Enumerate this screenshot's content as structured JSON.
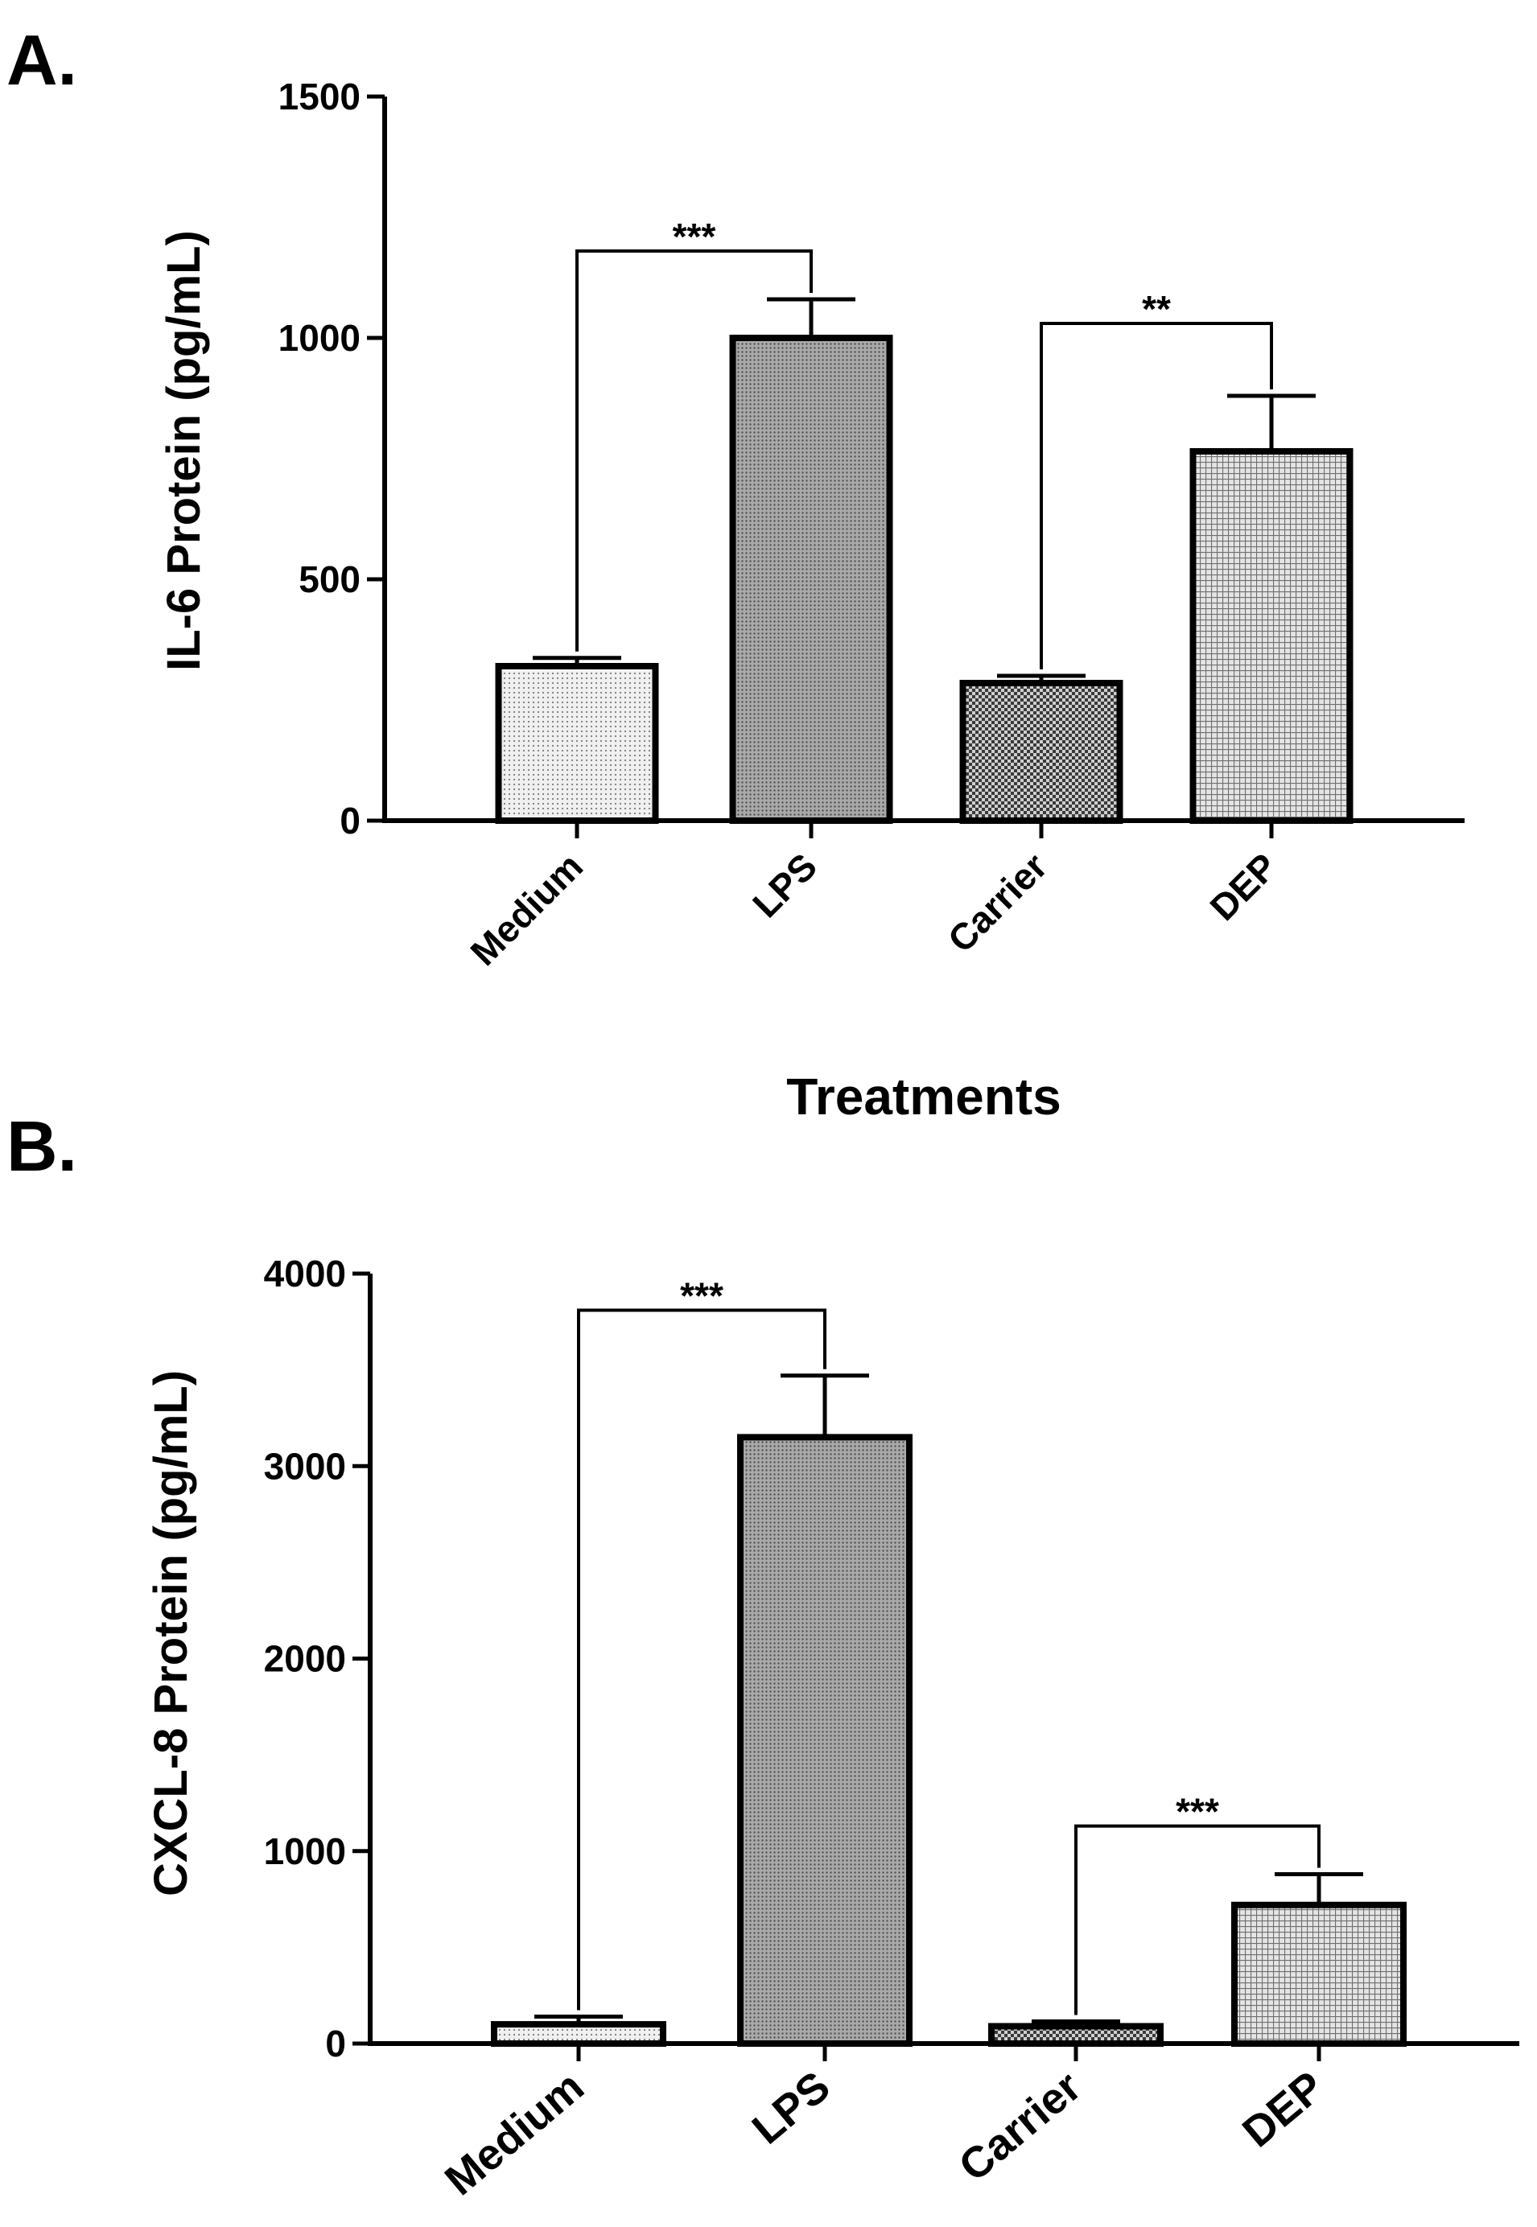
{
  "chart_data": [
    {
      "type": "bar",
      "panel_label": "A.",
      "ylabel": "IL-6 Protein (pg/mL)",
      "xlabel": "Treatments",
      "categories": [
        "Medium",
        "LPS",
        "Carrier",
        "DEP"
      ],
      "values": [
        320,
        1000,
        285,
        765
      ],
      "errors": [
        17,
        80,
        15,
        115
      ],
      "ylim": [
        0,
        1500
      ],
      "yticks": [
        0,
        500,
        1000,
        1500
      ],
      "fills": [
        "light",
        "medium",
        "dark",
        "grid"
      ],
      "significance": [
        {
          "from": 0,
          "to": 1,
          "label": "***",
          "bracket_y": 1180
        },
        {
          "from": 2,
          "to": 3,
          "label": "**",
          "bracket_y": 1030
        }
      ]
    },
    {
      "type": "bar",
      "panel_label": "B.",
      "ylabel": "CXCL-8 Protein  (pg/mL)",
      "xlabel": "",
      "categories": [
        "Medium",
        "LPS",
        "Carrier",
        "DEP"
      ],
      "values": [
        100,
        3150,
        90,
        720
      ],
      "errors": [
        40,
        320,
        25,
        160
      ],
      "ylim": [
        0,
        4000
      ],
      "yticks": [
        0,
        1000,
        2000,
        3000,
        4000
      ],
      "fills": [
        "light",
        "medium",
        "dark",
        "grid"
      ],
      "significance": [
        {
          "from": 0,
          "to": 1,
          "label": "***",
          "bracket_y": 3810
        },
        {
          "from": 2,
          "to": 3,
          "label": "***",
          "bracket_y": 1130
        }
      ]
    }
  ]
}
